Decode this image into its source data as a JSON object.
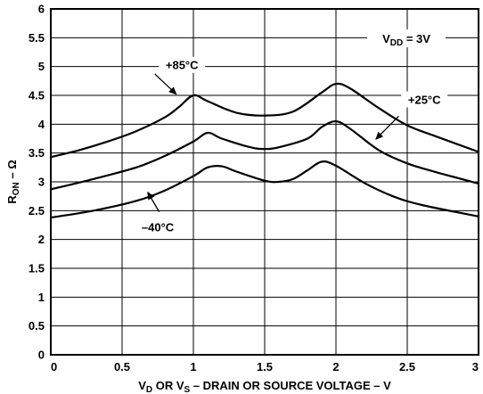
{
  "chart_data": {
    "type": "line",
    "xlim": [
      0,
      3
    ],
    "ylim": [
      0,
      6
    ],
    "grid": true,
    "x_ticks": [
      "0",
      "0.5",
      "1",
      "1.5",
      "2",
      "2.5",
      "3"
    ],
    "y_ticks": [
      "0",
      "0.5",
      "1",
      "1.5",
      "2",
      "2.5",
      "3",
      "3.5",
      "4",
      "4.5",
      "5",
      "5.5",
      "6"
    ],
    "xlabel": {
      "p1": "V",
      "s1": "D",
      "p2": " OR V",
      "s2": "S",
      "p3": " – DRAIN OR SOURCE VOLTAGE – V"
    },
    "ylabel": {
      "p1": "R",
      "s1": "ON",
      "p2": " – Ω"
    },
    "condition": {
      "p1": "V",
      "s1": "DD",
      "p2": " = 3V"
    },
    "series": [
      {
        "name": "+85°C",
        "label_x": 0.92,
        "label_y": 5.03,
        "arrow": [
          [
            0.73,
            4.87
          ],
          [
            0.88,
            4.52
          ]
        ],
        "x": [
          0,
          0.2,
          0.4,
          0.6,
          0.8,
          0.9,
          1.0,
          1.1,
          1.3,
          1.5,
          1.7,
          1.9,
          2.0,
          2.1,
          2.3,
          2.5,
          2.7,
          3.0
        ],
        "y": [
          3.43,
          3.55,
          3.7,
          3.88,
          4.12,
          4.3,
          4.5,
          4.4,
          4.2,
          4.15,
          4.22,
          4.55,
          4.7,
          4.62,
          4.28,
          3.98,
          3.79,
          3.52
        ]
      },
      {
        "name": "+25°C",
        "label_x": 2.62,
        "label_y": 4.43,
        "arrow": [
          [
            2.44,
            4.14
          ],
          [
            2.28,
            3.74
          ]
        ],
        "x": [
          0,
          0.3,
          0.6,
          0.8,
          1.0,
          1.1,
          1.2,
          1.4,
          1.5,
          1.6,
          1.8,
          1.9,
          2.0,
          2.1,
          2.3,
          2.5,
          2.7,
          3.0
        ],
        "y": [
          2.87,
          3.05,
          3.25,
          3.45,
          3.7,
          3.85,
          3.75,
          3.6,
          3.57,
          3.6,
          3.75,
          3.95,
          4.05,
          3.92,
          3.55,
          3.32,
          3.17,
          2.97
        ]
      },
      {
        "name": "–40°C",
        "label_x": 0.75,
        "label_y": 2.22,
        "arrow": [
          [
            0.76,
            2.48
          ],
          [
            0.68,
            2.82
          ]
        ],
        "x": [
          0,
          0.3,
          0.6,
          0.8,
          1.0,
          1.1,
          1.2,
          1.3,
          1.5,
          1.6,
          1.7,
          1.8,
          1.9,
          2.0,
          2.2,
          2.4,
          2.6,
          3.0
        ],
        "y": [
          2.38,
          2.5,
          2.67,
          2.85,
          3.1,
          3.25,
          3.27,
          3.18,
          3.02,
          3.0,
          3.05,
          3.2,
          3.35,
          3.28,
          2.98,
          2.75,
          2.6,
          2.4
        ]
      }
    ]
  }
}
